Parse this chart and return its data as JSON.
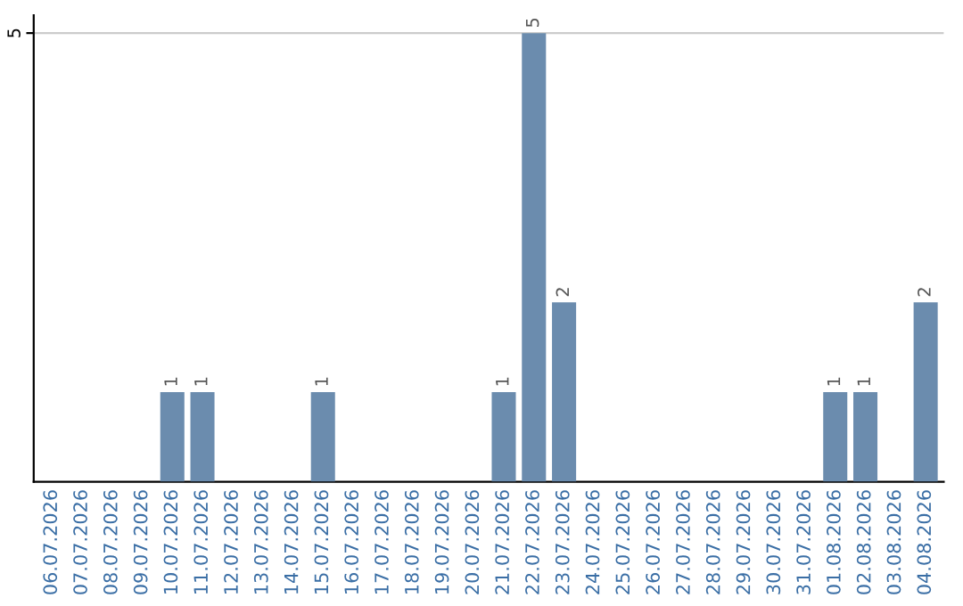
{
  "chart_data": {
    "type": "bar",
    "categories": [
      "06.07.2026",
      "07.07.2026",
      "08.07.2026",
      "09.07.2026",
      "10.07.2026",
      "11.07.2026",
      "12.07.2026",
      "13.07.2026",
      "14.07.2026",
      "15.07.2026",
      "16.07.2026",
      "17.07.2026",
      "18.07.2026",
      "19.07.2026",
      "20.07.2026",
      "21.07.2026",
      "22.07.2026",
      "23.07.2026",
      "24.07.2026",
      "25.07.2026",
      "26.07.2026",
      "27.07.2026",
      "28.07.2026",
      "29.07.2026",
      "30.07.2026",
      "31.07.2026",
      "01.08.2026",
      "02.08.2026",
      "03.08.2026",
      "04.08.2026"
    ],
    "values": [
      0,
      0,
      0,
      0,
      1,
      1,
      0,
      0,
      0,
      1,
      0,
      0,
      0,
      0,
      0,
      1,
      5,
      2,
      0,
      0,
      0,
      0,
      0,
      0,
      0,
      0,
      1,
      1,
      0,
      2
    ],
    "value_labels": [
      null,
      null,
      null,
      null,
      "1",
      "1",
      null,
      null,
      null,
      "1",
      null,
      null,
      null,
      null,
      null,
      "1",
      "5",
      "2",
      null,
      null,
      null,
      null,
      null,
      null,
      null,
      null,
      "1",
      "1",
      null,
      "2"
    ],
    "color": "#6b8cae",
    "ylim": [
      0,
      5.2
    ],
    "yticks": [
      5
    ],
    "grid": "y"
  }
}
